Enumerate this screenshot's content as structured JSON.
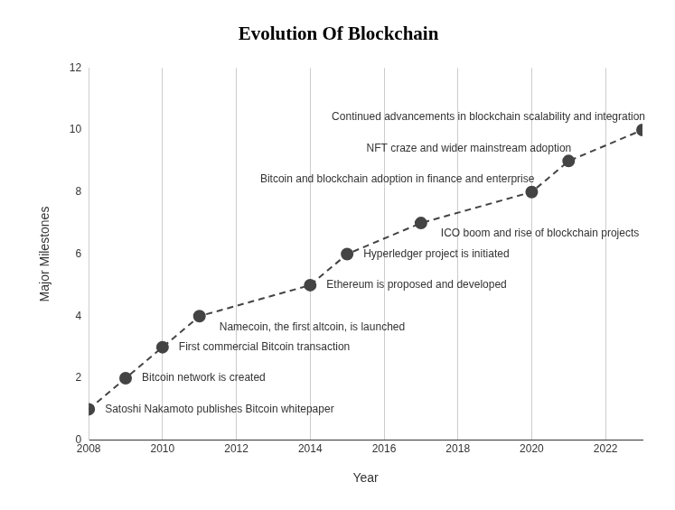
{
  "chart_data": {
    "type": "line",
    "title": "Evolution Of Blockchain",
    "x_label": "Year",
    "y_label": "Major Milestones",
    "x": [
      2008,
      2009,
      2010,
      2011,
      2014,
      2015,
      2017,
      2020,
      2021,
      2023
    ],
    "values": [
      1,
      2,
      3,
      4,
      5,
      6,
      7,
      8,
      9,
      10
    ],
    "annotations": [
      "Satoshi Nakamoto publishes Bitcoin whitepaper",
      "Bitcoin network is created",
      "First commercial Bitcoin transaction",
      "Namecoin, the first altcoin, is launched",
      "Ethereum is proposed and developed",
      "Hyperledger project is initiated",
      "ICO boom and rise of blockchain projects",
      "Bitcoin and blockchain adoption in finance and enterprise",
      "NFT craze and wider mainstream adoption",
      "Continued advancements in blockchain scalability and integration"
    ],
    "color": "#444444",
    "marker": "circle",
    "line_style": "dashed",
    "xlim": [
      2008,
      2023
    ],
    "xticks": [
      2008,
      2010,
      2012,
      2014,
      2016,
      2018,
      2020,
      2022
    ],
    "ylim": [
      0,
      12
    ],
    "yticks": [
      0,
      2,
      4,
      6,
      8,
      10,
      12
    ],
    "grid": true
  }
}
